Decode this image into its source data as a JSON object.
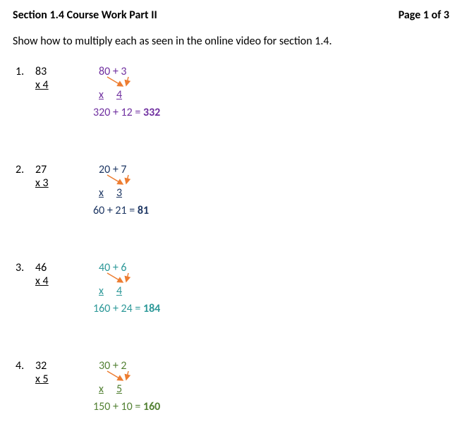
{
  "header": {
    "title": "Section 1.4 Course Work Part II",
    "page": "Page 1 of 3"
  },
  "instruction": "Show how to multiply each as seen in the online video for section 1.4.",
  "problems": [
    {
      "num": "1.",
      "original_top": "83",
      "original_bot": "x 4",
      "exp_top": "80 + 3",
      "exp_bot_x": "x",
      "exp_bot_val": "4",
      "result_sum": "320 + 12 = ",
      "result_ans": "332",
      "color": "#7030a0"
    },
    {
      "num": "2.",
      "original_top": "27",
      "original_bot": "x 3",
      "exp_top": "20 + 7",
      "exp_bot_x": "x",
      "exp_bot_val": "3",
      "result_sum": "60 + 21 = ",
      "result_ans": "81",
      "color": "#1f3864"
    },
    {
      "num": "3.",
      "original_top": "46",
      "original_bot": "x 4",
      "exp_top": "40 + 6",
      "exp_bot_x": "x",
      "exp_bot_val": "4",
      "result_sum": "160 + 24 = ",
      "result_ans": "184",
      "color": "#2e9999"
    },
    {
      "num": "4.",
      "original_top": "32",
      "original_bot": "x 5",
      "exp_top": "30 + 2",
      "exp_bot_x": "x",
      "exp_bot_val": "5",
      "result_sum": "150 + 10 = ",
      "result_ans": "160",
      "color": "#548235"
    }
  ],
  "style": {
    "font_family": "Calibri, Arial, sans-serif",
    "font_size_pt": 12,
    "text_color": "#000000",
    "background_color": "#ffffff",
    "arrow_color": "#ed7d31",
    "arrow_stroke_width": 1.5
  }
}
